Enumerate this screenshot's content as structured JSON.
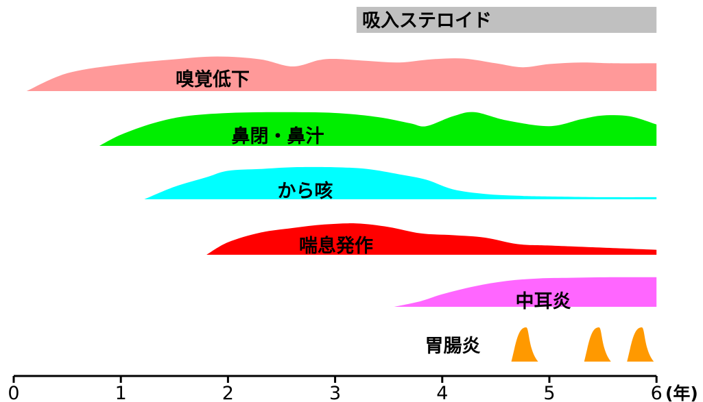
{
  "chart_data": {
    "type": "area",
    "x_unit": "(年)",
    "xlim": [
      0,
      6
    ],
    "ticks": [
      "0",
      "1",
      "2",
      "3",
      "4",
      "5",
      "6"
    ],
    "bars": [
      {
        "label": "吸入ステロイド",
        "x_start": 3.2,
        "x_end": 6.0,
        "color": "#c0c0c0"
      }
    ],
    "series": [
      {
        "name": "嗅覚低下",
        "color": "#ff9999",
        "x": [
          0.12,
          0.5,
          1.0,
          1.5,
          1.9,
          2.3,
          2.6,
          2.85,
          3.0,
          3.3,
          3.6,
          3.9,
          4.2,
          4.5,
          4.75,
          5.0,
          5.3,
          5.6,
          6.0
        ],
        "y": [
          0.0,
          0.45,
          0.67,
          0.8,
          0.87,
          0.8,
          0.62,
          0.78,
          0.81,
          0.76,
          0.72,
          0.8,
          0.82,
          0.7,
          0.6,
          0.68,
          0.72,
          0.7,
          0.7
        ]
      },
      {
        "name": "鼻閉・鼻汁",
        "color": "#00ee00",
        "x": [
          0.8,
          1.0,
          1.3,
          1.6,
          2.0,
          2.5,
          3.0,
          3.4,
          3.7,
          3.85,
          4.1,
          4.3,
          4.6,
          5.0,
          5.3,
          5.5,
          5.75,
          6.0
        ],
        "y": [
          0.0,
          0.27,
          0.55,
          0.72,
          0.8,
          0.82,
          0.8,
          0.7,
          0.55,
          0.48,
          0.72,
          0.82,
          0.62,
          0.48,
          0.65,
          0.74,
          0.72,
          0.52
        ]
      },
      {
        "name": "から咳",
        "color": "#00ffff",
        "x": [
          1.22,
          1.5,
          1.8,
          2.0,
          2.3,
          2.6,
          3.0,
          3.3,
          3.6,
          3.85,
          4.1,
          4.4,
          4.7,
          5.0,
          5.5,
          6.0
        ],
        "y": [
          0.0,
          0.35,
          0.62,
          0.8,
          0.85,
          0.9,
          0.9,
          0.85,
          0.7,
          0.55,
          0.28,
          0.15,
          0.1,
          0.08,
          0.06,
          0.06
        ]
      },
      {
        "name": "喘息発作",
        "color": "#ff0000",
        "x": [
          1.8,
          2.0,
          2.3,
          2.6,
          2.9,
          3.2,
          3.5,
          3.8,
          4.1,
          4.4,
          4.7,
          5.0,
          5.5,
          6.0
        ],
        "y": [
          0.0,
          0.35,
          0.62,
          0.75,
          0.85,
          0.88,
          0.78,
          0.6,
          0.55,
          0.48,
          0.3,
          0.26,
          0.2,
          0.14
        ]
      },
      {
        "name": "中耳炎",
        "color": "#ff66ff",
        "x": [
          3.55,
          3.8,
          4.0,
          4.3,
          4.6,
          4.9,
          5.2,
          5.6,
          6.0
        ],
        "y": [
          0.0,
          0.18,
          0.4,
          0.65,
          0.82,
          0.9,
          0.92,
          0.94,
          0.94
        ]
      }
    ],
    "events": {
      "name": "胃腸炎",
      "color": "#ff9900",
      "episodes": [
        {
          "center": 4.77,
          "width": 0.25
        },
        {
          "center": 5.45,
          "width": 0.25
        },
        {
          "center": 5.85,
          "width": 0.25
        }
      ]
    }
  }
}
